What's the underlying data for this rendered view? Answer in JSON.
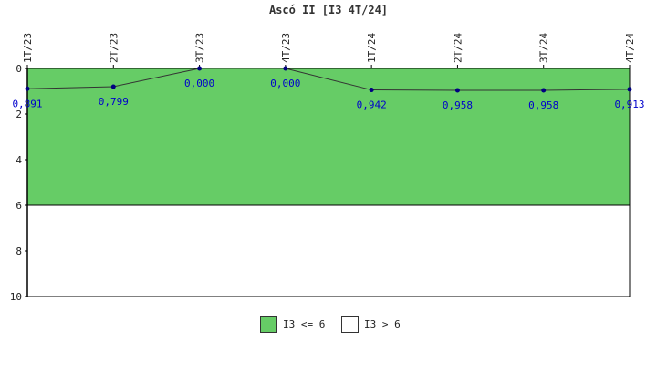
{
  "chart_data": {
    "type": "line",
    "title": "Ascó II [I3 4T/24]",
    "categories": [
      "1T/23",
      "2T/23",
      "3T/23",
      "4T/23",
      "1T/24",
      "2T/24",
      "3T/24",
      "4T/24"
    ],
    "series": [
      {
        "values": [
          0.891,
          0.799,
          0.0,
          0.0,
          0.942,
          0.958,
          0.958,
          0.913
        ],
        "labels": [
          "0,891",
          "0,799",
          "0,000",
          "0,000",
          "0,942",
          "0,958",
          "0,958",
          "0,913"
        ]
      }
    ],
    "ylim": [
      0,
      10
    ],
    "y_inverted": true,
    "yticks": [
      "0",
      "2",
      "4",
      "6",
      "8",
      "10"
    ],
    "bands": [
      {
        "name": "I3 <= 6",
        "from": 0,
        "to": 6,
        "color": "#66cc66"
      },
      {
        "name": "I3 > 6",
        "from": 6,
        "to": 10,
        "color": "#ffffff"
      }
    ],
    "line_color": "#333333",
    "marker_color": "#000080",
    "label_color": "#0000cc",
    "legend_position": "bottom-center",
    "grid": false
  }
}
